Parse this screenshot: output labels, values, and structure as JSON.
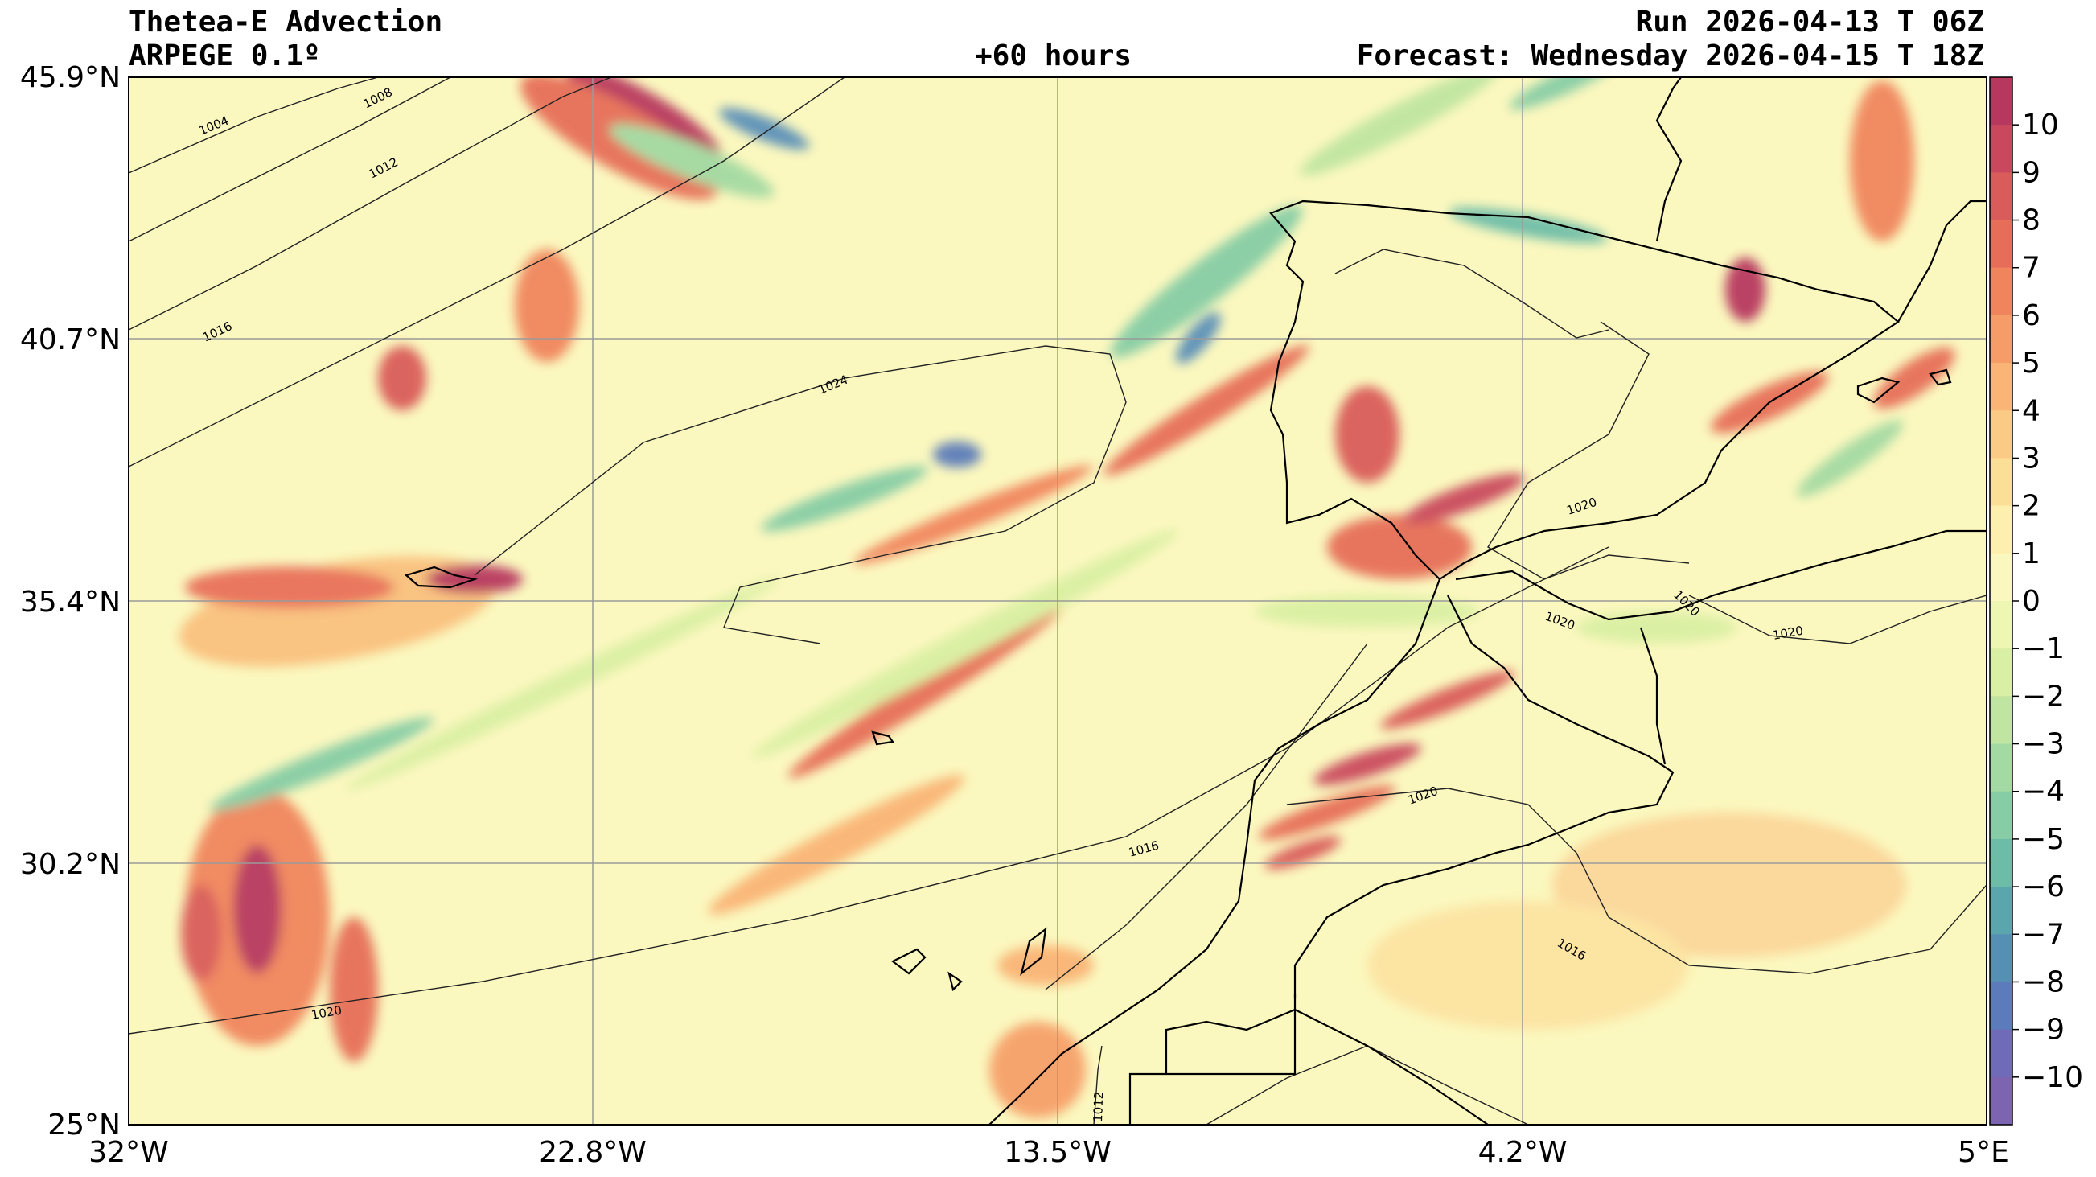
{
  "header": {
    "title": "Thetea-E Advection",
    "model": "ARPEGE 0.1º",
    "lead": "+60 hours",
    "run": "Run 2026-04-13 T 06Z",
    "forecast": "Forecast: Wednesday 2026-04-15 T 18Z"
  },
  "map": {
    "lat_labels": [
      "45.9°N",
      "40.7°N",
      "35.4°N",
      "30.2°N",
      "25°N"
    ],
    "lon_labels": [
      "32°W",
      "22.8°W",
      "13.5°W",
      "4.2°W",
      "5°E"
    ],
    "isobar_labels": [
      "1004",
      "1008",
      "1012",
      "1016",
      "1024",
      "1020",
      "1020",
      "1020",
      "1020",
      "1020",
      "1016",
      "1016",
      "1020",
      "1012"
    ],
    "colors": {
      "background": "#fbf8bf",
      "coast": "#000000",
      "grid": "#9a9a9a"
    }
  },
  "colorbar": {
    "ticks": [
      "10",
      "9",
      "8",
      "7",
      "6",
      "5",
      "4",
      "3",
      "2",
      "1",
      "0",
      "−1",
      "−2",
      "−3",
      "−4",
      "−5",
      "−6",
      "−7",
      "−8",
      "−9",
      "−10"
    ],
    "colors": [
      "#b7385f",
      "#c9485d",
      "#d95b5a",
      "#e66e58",
      "#f0855d",
      "#f69c68",
      "#f9b476",
      "#fbcb86",
      "#fcdf97",
      "#fdf0ae",
      "#fbf8bf",
      "#eef7b2",
      "#d9efa3",
      "#bfe5a0",
      "#a3d9a2",
      "#86cca5",
      "#6cbca8",
      "#5aa6ac",
      "#5590b4",
      "#5b7bba",
      "#6f6bb8",
      "#7d64b0"
    ]
  }
}
